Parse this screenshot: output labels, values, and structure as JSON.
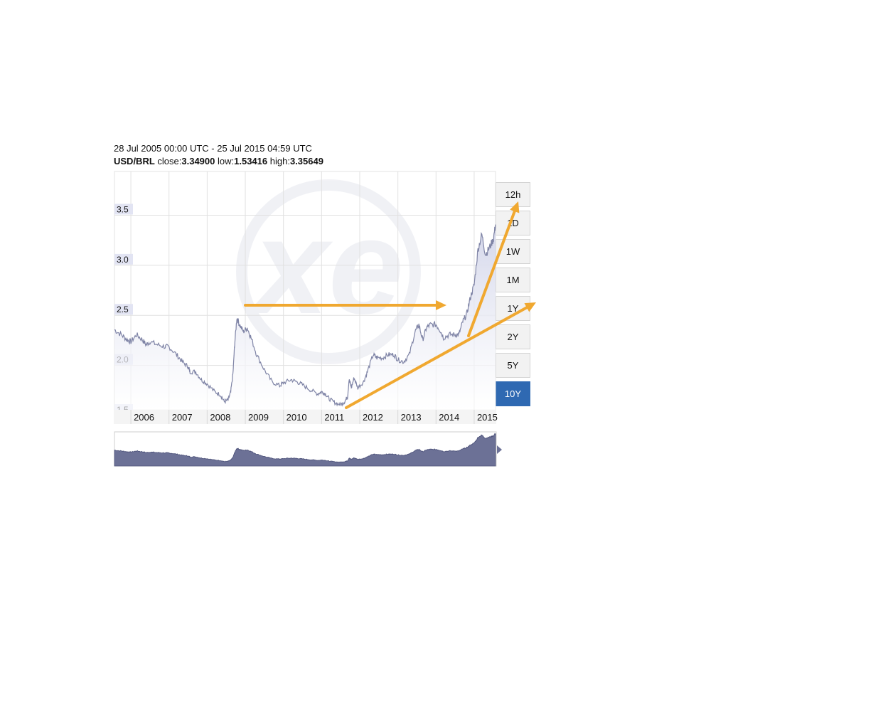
{
  "header": {
    "date_range": "28 Jul 2005 00:00 UTC - 25 Jul 2015 04:59 UTC",
    "pair": "USD/BRL",
    "close_label": "close:",
    "close_value": "3.34900",
    "low_label": "low:",
    "low_value": "1.53416",
    "high_label": "high:",
    "high_value": "3.35649"
  },
  "range_buttons": [
    "12h",
    "1D",
    "1W",
    "1M",
    "1Y",
    "2Y",
    "5Y",
    "10Y"
  ],
  "active_range": "10Y",
  "colors": {
    "line": "#7f84a6",
    "area": "#6c7196",
    "arrow": "#f0a830",
    "active_button": "#2f69b2",
    "y_label_bg": "#e2e4f3"
  },
  "chart_data": {
    "type": "line",
    "title": "",
    "series": [
      {
        "name": "USD/BRL",
        "x": [
          2005.57,
          2005.75,
          2005.9,
          2006.0,
          2006.15,
          2006.3,
          2006.4,
          2006.5,
          2006.7,
          2006.9,
          2007.0,
          2007.2,
          2007.35,
          2007.5,
          2007.55,
          2007.7,
          2007.85,
          2008.0,
          2008.2,
          2008.35,
          2008.45,
          2008.55,
          2008.62,
          2008.68,
          2008.72,
          2008.78,
          2008.85,
          2008.95,
          2009.05,
          2009.15,
          2009.3,
          2009.5,
          2009.7,
          2009.9,
          2010.0,
          2010.2,
          2010.35,
          2010.5,
          2010.7,
          2010.9,
          2011.0,
          2011.1,
          2011.2,
          2011.35,
          2011.5,
          2011.6,
          2011.68,
          2011.72,
          2011.78,
          2011.85,
          2011.95,
          2012.1,
          2012.2,
          2012.35,
          2012.45,
          2012.6,
          2012.75,
          2012.9,
          2013.0,
          2013.15,
          2013.3,
          2013.45,
          2013.55,
          2013.65,
          2013.75,
          2013.85,
          2014.0,
          2014.1,
          2014.2,
          2014.35,
          2014.5,
          2014.6,
          2014.7,
          2014.8,
          2014.9,
          2015.0,
          2015.1,
          2015.2,
          2015.3,
          2015.4,
          2015.5,
          2015.56
        ],
        "y": [
          2.3,
          2.25,
          2.2,
          2.18,
          2.25,
          2.2,
          2.15,
          2.18,
          2.15,
          2.13,
          2.13,
          2.05,
          1.98,
          1.93,
          1.88,
          1.88,
          1.8,
          1.76,
          1.68,
          1.65,
          1.58,
          1.6,
          1.68,
          1.88,
          2.15,
          2.42,
          2.35,
          2.28,
          2.32,
          2.22,
          2.05,
          1.9,
          1.78,
          1.74,
          1.77,
          1.8,
          1.78,
          1.75,
          1.7,
          1.66,
          1.68,
          1.66,
          1.61,
          1.57,
          1.55,
          1.58,
          1.63,
          1.8,
          1.72,
          1.82,
          1.72,
          1.78,
          1.88,
          2.05,
          2.02,
          2.02,
          2.05,
          2.05,
          2.0,
          1.98,
          2.05,
          2.28,
          2.35,
          2.2,
          2.32,
          2.35,
          2.35,
          2.3,
          2.22,
          2.25,
          2.25,
          2.25,
          2.38,
          2.45,
          2.62,
          2.75,
          3.1,
          3.25,
          3.05,
          3.12,
          3.2,
          3.35
        ]
      }
    ],
    "x_ticks": [
      2006,
      2007,
      2008,
      2009,
      2010,
      2011,
      2012,
      2013,
      2014,
      2015
    ],
    "x_tick_labels": [
      "2006",
      "2007",
      "2008",
      "2009",
      "2010",
      "2011",
      "2012",
      "2013",
      "2014",
      "2015"
    ],
    "y_ticks": [
      1.5,
      2.0,
      2.5,
      3.0,
      3.5
    ],
    "y_tick_labels": [
      "1.5",
      "2.0",
      "2.5",
      "3.0",
      "3.5"
    ],
    "xlim": [
      2005.57,
      2015.56
    ],
    "ylim": [
      1.5,
      3.88
    ],
    "grid": true,
    "annotations": [
      "arrow",
      "arrow",
      "arrow"
    ]
  }
}
